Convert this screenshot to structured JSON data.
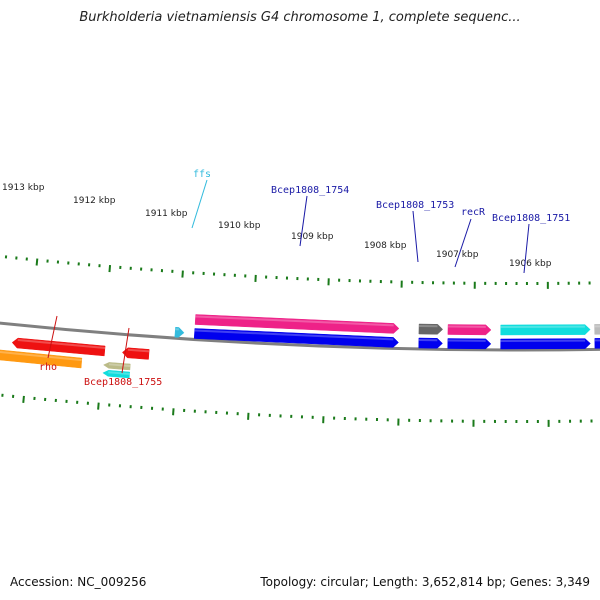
{
  "title": "Burkholderia vietnamiensis G4 chromosome 1, complete sequenc...",
  "footer": {
    "accession": "Accession: NC_009256",
    "topology": "Topology: circular; Length: 3,652,814 bp; Genes: 3,349"
  },
  "colors": {
    "backbone": "#808080",
    "tick": "#1a7a1a",
    "label_blue": "#1a1aa6",
    "label_red": "#cc1111",
    "label_cyan": "#33bbdd"
  },
  "chart_data": {
    "type": "genome-map",
    "kbp_ticks": [
      "1913 kbp",
      "1912 kbp",
      "1911 kbp",
      "1910 kbp",
      "1909 kbp",
      "1908 kbp",
      "1907 kbp",
      "1906 kbp"
    ],
    "gene_labels": [
      {
        "text": "ffs",
        "color": "#33bbdd"
      },
      {
        "text": "Bcep1808_1754",
        "color": "#1a1aa6"
      },
      {
        "text": "Bcep1808_1753",
        "color": "#1a1aa6"
      },
      {
        "text": "recR",
        "color": "#1a1aa6"
      },
      {
        "text": "Bcep1808_1751",
        "color": "#1a1aa6"
      },
      {
        "text": "rho",
        "color": "#cc1111"
      },
      {
        "text": "Bcep1808_1755",
        "color": "#cc1111"
      }
    ],
    "genes": [
      {
        "color": "#ee1111",
        "strand": "reverse"
      },
      {
        "color": "#ee1111",
        "strand": "reverse"
      },
      {
        "color": "#ee1111",
        "strand": "reverse"
      },
      {
        "color": "#ff9911",
        "strand": "reverse"
      },
      {
        "color": "#bbbb88",
        "strand": "reverse"
      },
      {
        "color": "#11dddd",
        "strand": "reverse"
      },
      {
        "color": "#33bbdd",
        "strand": "forward"
      },
      {
        "color": "#ee2288",
        "strand": "forward"
      },
      {
        "color": "#0000ee",
        "strand": "forward"
      },
      {
        "color": "#666666",
        "strand": "forward"
      },
      {
        "color": "#0000ee",
        "strand": "forward"
      },
      {
        "color": "#ee2288",
        "strand": "forward"
      },
      {
        "color": "#0000ee",
        "strand": "forward"
      },
      {
        "color": "#11dddd",
        "strand": "forward"
      },
      {
        "color": "#0000ee",
        "strand": "forward"
      },
      {
        "color": "#bbbbbb",
        "strand": "forward"
      },
      {
        "color": "#0000ee",
        "strand": "forward"
      }
    ]
  }
}
